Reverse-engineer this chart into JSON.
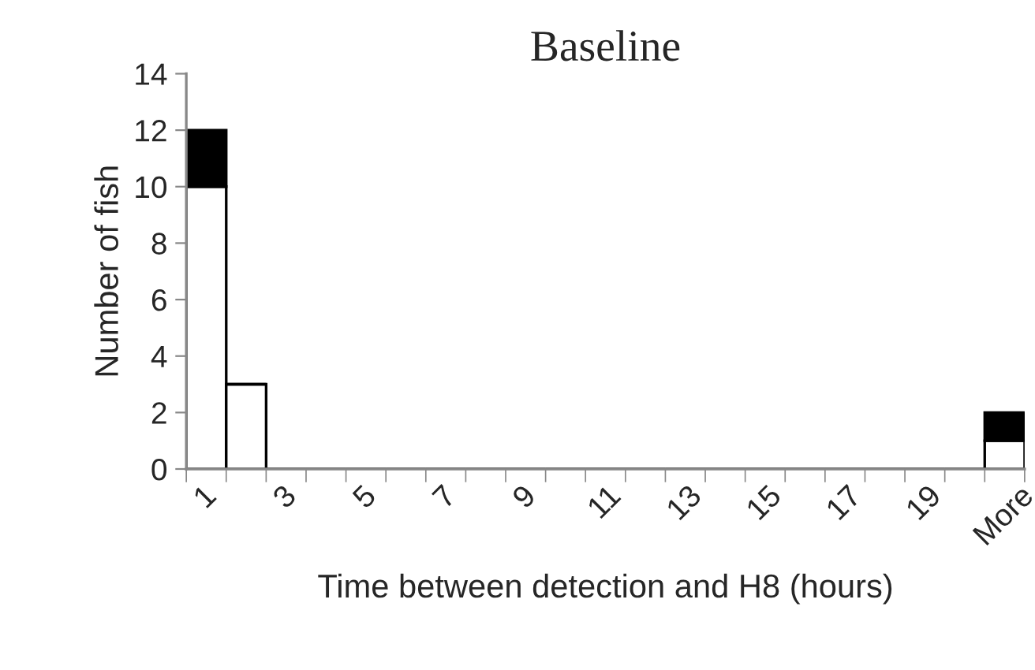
{
  "chart_data": {
    "type": "bar",
    "title": "Baseline",
    "xlabel": "Time between detection and H8 (hours)",
    "ylabel": "Number of fish",
    "categories": [
      "1",
      null,
      "3",
      null,
      "5",
      null,
      "7",
      null,
      "9",
      null,
      "11",
      null,
      "13",
      null,
      "15",
      null,
      "17",
      null,
      "19",
      null,
      "More"
    ],
    "stacked": true,
    "series": [
      {
        "color": "#ffffff",
        "values": [
          10,
          3,
          0,
          0,
          0,
          0,
          0,
          0,
          0,
          0,
          0,
          0,
          0,
          0,
          0,
          0,
          0,
          0,
          0,
          0,
          1
        ]
      },
      {
        "color": "#000000",
        "values": [
          2,
          0,
          0,
          0,
          0,
          0,
          0,
          0,
          0,
          0,
          0,
          0,
          0,
          0,
          0,
          0,
          0,
          0,
          0,
          0,
          1
        ]
      }
    ],
    "ylim": [
      0,
      14
    ],
    "yticks": [
      0,
      2,
      4,
      6,
      8,
      10,
      12,
      14
    ],
    "grid": false,
    "legend": false
  }
}
